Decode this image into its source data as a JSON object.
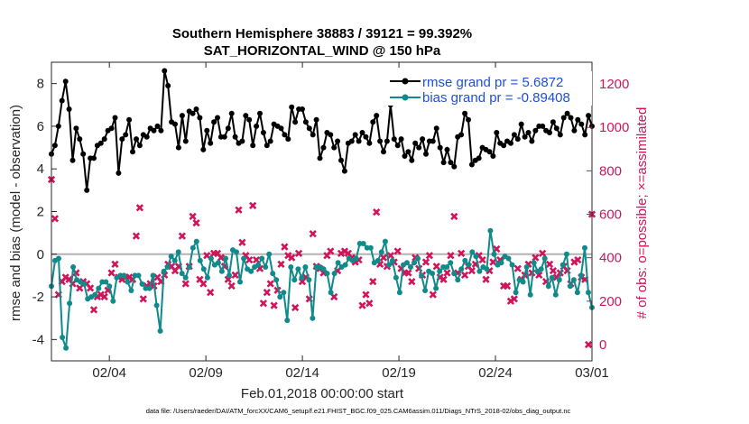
{
  "chart_data": {
    "type": "line",
    "title": "Southern Hemisphere 38883 / 39121 = 99.392%",
    "subtitle": "SAT_HORIZONTAL_WIND @ 150 hPa",
    "xlabel": "Feb.01,2018 00:00:00 start",
    "ylabel": "rmse and bias (model - observation)",
    "ylabel_right": "# of obs: o=possible; ×=assimilated",
    "footnote": "data file: /Users/raeder/DAI/ATM_forcXX/CAM6_setup/f.e21.FHIST_BGC.f09_025.CAM6assim.011/Diags_NTrS_2018-02/obs_diag_output.nc",
    "x_tick_labels": [
      "02/04",
      "02/09",
      "02/14",
      "02/19",
      "02/24",
      "03/01"
    ],
    "x_tick_days": [
      3,
      8,
      13,
      18,
      23,
      28
    ],
    "xlim_days": [
      0,
      28
    ],
    "ylim": [
      -5,
      9
    ],
    "y_ticks": [
      -4,
      -2,
      0,
      2,
      4,
      6,
      8
    ],
    "y_tick_labels": [
      "-4",
      "-2",
      "0",
      "2",
      "4",
      "6",
      "8"
    ],
    "ylim_right": [
      -75,
      1300
    ],
    "y_ticks_right": [
      0,
      200,
      400,
      600,
      800,
      1000,
      1200
    ],
    "y_tick_labels_right": [
      "0",
      "200",
      "400",
      "600",
      "800",
      "1000",
      "1200"
    ],
    "colors": {
      "rmse": "#000000",
      "bias": "#108a8a",
      "obs": "#d0155a",
      "zero_line": "#b3b3b3",
      "legend_text": "#1f4fd8"
    },
    "series": [
      {
        "name": "rmse grand pr = 5.6872",
        "axis": "left",
        "values": [
          4.7,
          5.1,
          6.0,
          7.2,
          8.1,
          6.8,
          4.4,
          5.9,
          5.4,
          4.7,
          3.0,
          4.5,
          4.5,
          5.1,
          5.2,
          5.4,
          5.8,
          5.9,
          6.4,
          3.8,
          5.4,
          5.6,
          6.3,
          4.8,
          5.4,
          5.1,
          5.6,
          5.5,
          5.9,
          5.8,
          6.0,
          5.8,
          8.6,
          7.9,
          6.2,
          6.1,
          5.0,
          6.5,
          5.3,
          6.7,
          6.6,
          6.8,
          6.4,
          4.9,
          5.8,
          5.2,
          6.2,
          6.4,
          5.5,
          5.5,
          5.9,
          6.6,
          5.5,
          5.2,
          5.3,
          6.5,
          6.3,
          5.1,
          6.0,
          6.6,
          5.7,
          5.1,
          5.3,
          6.1,
          6.0,
          5.9,
          5.6,
          5.4,
          6.9,
          6.2,
          6.8,
          6.8,
          6.2,
          5.9,
          5.6,
          6.3,
          4.5,
          5.0,
          5.7,
          5.6,
          5.0,
          5.3,
          4.4,
          3.9,
          5.2,
          5.3,
          5.6,
          5.3,
          5.7,
          5.5,
          5.2,
          6.2,
          6.5,
          5.3,
          4.8,
          5.3,
          7.0,
          5.4,
          5.1,
          5.4,
          4.6,
          4.8,
          4.4,
          5.2,
          5.0,
          5.4,
          4.7,
          5.3,
          5.3,
          5.9,
          5.0,
          4.3,
          4.9,
          4.3,
          4.1,
          5.5,
          5.6,
          6.6,
          6.3,
          4.2,
          4.4,
          4.5,
          5.0,
          4.9,
          4.8,
          4.6,
          5.7,
          5.2,
          5.1,
          5.3,
          5.2,
          5.6,
          5.4,
          6.1,
          5.5,
          5.7,
          5.3,
          5.8,
          6.0,
          6.0,
          5.8,
          5.7,
          6.2,
          5.9,
          5.6,
          6.4,
          6.6,
          6.4,
          5.8,
          6.3,
          6.1,
          5.6,
          6.5,
          6.0
        ]
      },
      {
        "name": "bias grand pr = -0.89408",
        "axis": "left",
        "values": [
          -1.5,
          -0.3,
          -0.2,
          -3.9,
          -4.4,
          -2.3,
          -0.6,
          -1.2,
          -1.3,
          -1.4,
          -2.1,
          -2.0,
          -1.9,
          -1.6,
          -1.3,
          -1.3,
          -1.5,
          -2.2,
          -1.1,
          -1.0,
          -1.0,
          -1.3,
          -1.7,
          -1.0,
          -1.0,
          -1.4,
          -1.6,
          -1.6,
          -1.0,
          -2.4,
          -3.6,
          -0.8,
          -0.6,
          -0.1,
          -0.3,
          0.1,
          -0.9,
          -1.1,
          -0.6,
          0.3,
          0.6,
          -0.3,
          -0.7,
          -1.1,
          -0.2,
          -0.5,
          -0.4,
          -0.8,
          -0.2,
          -1.0,
          0.2,
          0.1,
          -1.3,
          -0.2,
          -0.7,
          -0.8,
          -0.6,
          -0.5,
          -0.2,
          -0.6,
          0.0,
          -0.9,
          -1.2,
          -2.0,
          -1.8,
          -3.1,
          -0.6,
          -1.2,
          -0.7,
          -1.1,
          -0.6,
          -1.2,
          -3.0,
          -0.6,
          -0.6,
          -0.7,
          -0.9,
          -1.8,
          -0.9,
          -0.4,
          -0.6,
          -0.5,
          -0.2,
          -0.3,
          -0.2,
          0.5,
          0.5,
          0.3,
          0.3,
          -0.4,
          -0.3,
          0.1,
          0.6,
          -0.5,
          -0.3,
          -1.1,
          -1.8,
          -0.5,
          -0.4,
          -0.6,
          -0.4,
          -0.2,
          -1.0,
          -1.7,
          -0.8,
          -0.9,
          -1.6,
          -0.8,
          -0.6,
          -0.6,
          -0.4,
          -0.9,
          -1.2,
          -0.7,
          -0.3,
          -0.5,
          0.1,
          -0.1,
          -0.8,
          -0.6,
          -0.7,
          1.1,
          0.0,
          -0.5,
          -0.4,
          -0.1,
          -0.2,
          -0.5,
          -1.8,
          -1.2,
          -1.3,
          -0.6,
          -1.9,
          -0.4,
          -0.8,
          -0.7,
          -0.2,
          -1.5,
          -1.1,
          -1.9,
          -1.2,
          -0.5,
          0.0,
          -1.5,
          -1.2,
          -1.8,
          -1.0,
          0.3,
          -1.8,
          -2.5
        ]
      },
      {
        "name": "# of obs assimilated",
        "axis": "right",
        "marker": "✖",
        "values": [
          760,
          580,
          230,
          290,
          310,
          300,
          280,
          330,
          260,
          290,
          280,
          260,
          160,
          220,
          230,
          220,
          250,
          330,
          370,
          310,
          300,
          310,
          310,
          300,
          500,
          630,
          210,
          270,
          280,
          270,
          310,
          290,
          320,
          370,
          360,
          340,
          360,
          500,
          280,
          360,
          590,
          560,
          300,
          280,
          410,
          240,
          420,
          420,
          400,
          360,
          300,
          270,
          320,
          620,
          470,
          410,
          390,
          640,
          390,
          350,
          190,
          240,
          280,
          180,
          250,
          370,
          450,
          410,
          400,
          170,
          420,
          290,
          310,
          210,
          510,
          360,
          350,
          330,
          410,
          430,
          220,
          340,
          420,
          430,
          420,
          400,
          380,
          390,
          180,
          230,
          190,
          290,
          610,
          370,
          400,
          360,
          410,
          380,
          430,
          350,
          330,
          330,
          290,
          400,
          350,
          320,
          380,
          410,
          230,
          360,
          310,
          300,
          330,
          410,
          590,
          330,
          420,
          320,
          360,
          340,
          370,
          410,
          390,
          300,
          340,
          380,
          440,
          390,
          270,
          270,
          200,
          210,
          350,
          300,
          320,
          370,
          330,
          400,
          320,
          420,
          290,
          370,
          340,
          310,
          330,
          360,
          340,
          280,
          380,
          390,
          310,
          300,
          0,
          600
        ]
      }
    ],
    "legend": {
      "placement": "top-right",
      "entries": [
        "rmse grand pr = 5.6872",
        "bias grand pr = -0.89408"
      ]
    }
  }
}
